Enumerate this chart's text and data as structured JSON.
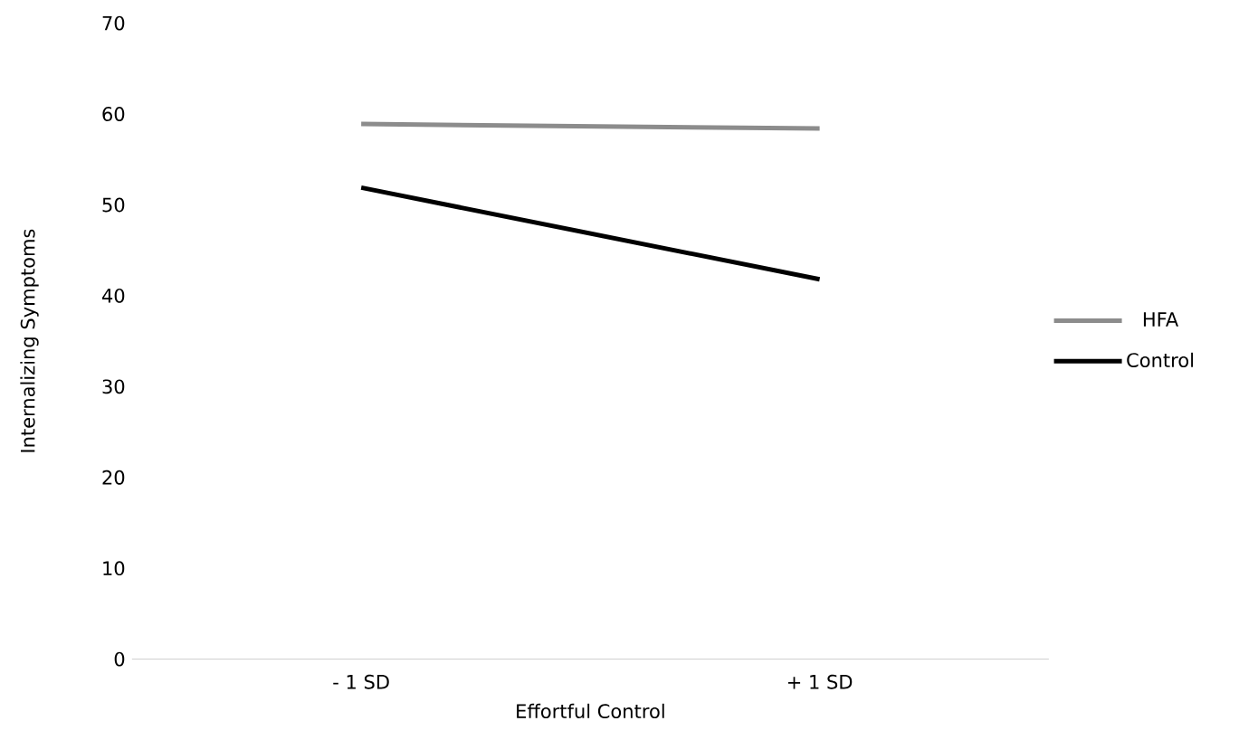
{
  "chart_data": {
    "type": "line",
    "xlabel": "Effortful Control",
    "ylabel": "Internalizing Symptoms",
    "categories": [
      "- 1 SD",
      "+ 1 SD"
    ],
    "series": [
      {
        "name": "HFA",
        "color": "#8c8c8c",
        "values": [
          58.9,
          58.4
        ]
      },
      {
        "name": "Control",
        "color": "#000000",
        "values": [
          51.9,
          41.8
        ]
      }
    ],
    "ylim": [
      0,
      70
    ],
    "yticks": [
      0,
      10,
      20,
      30,
      40,
      50,
      60,
      70
    ],
    "legend": "right",
    "grid": false
  }
}
